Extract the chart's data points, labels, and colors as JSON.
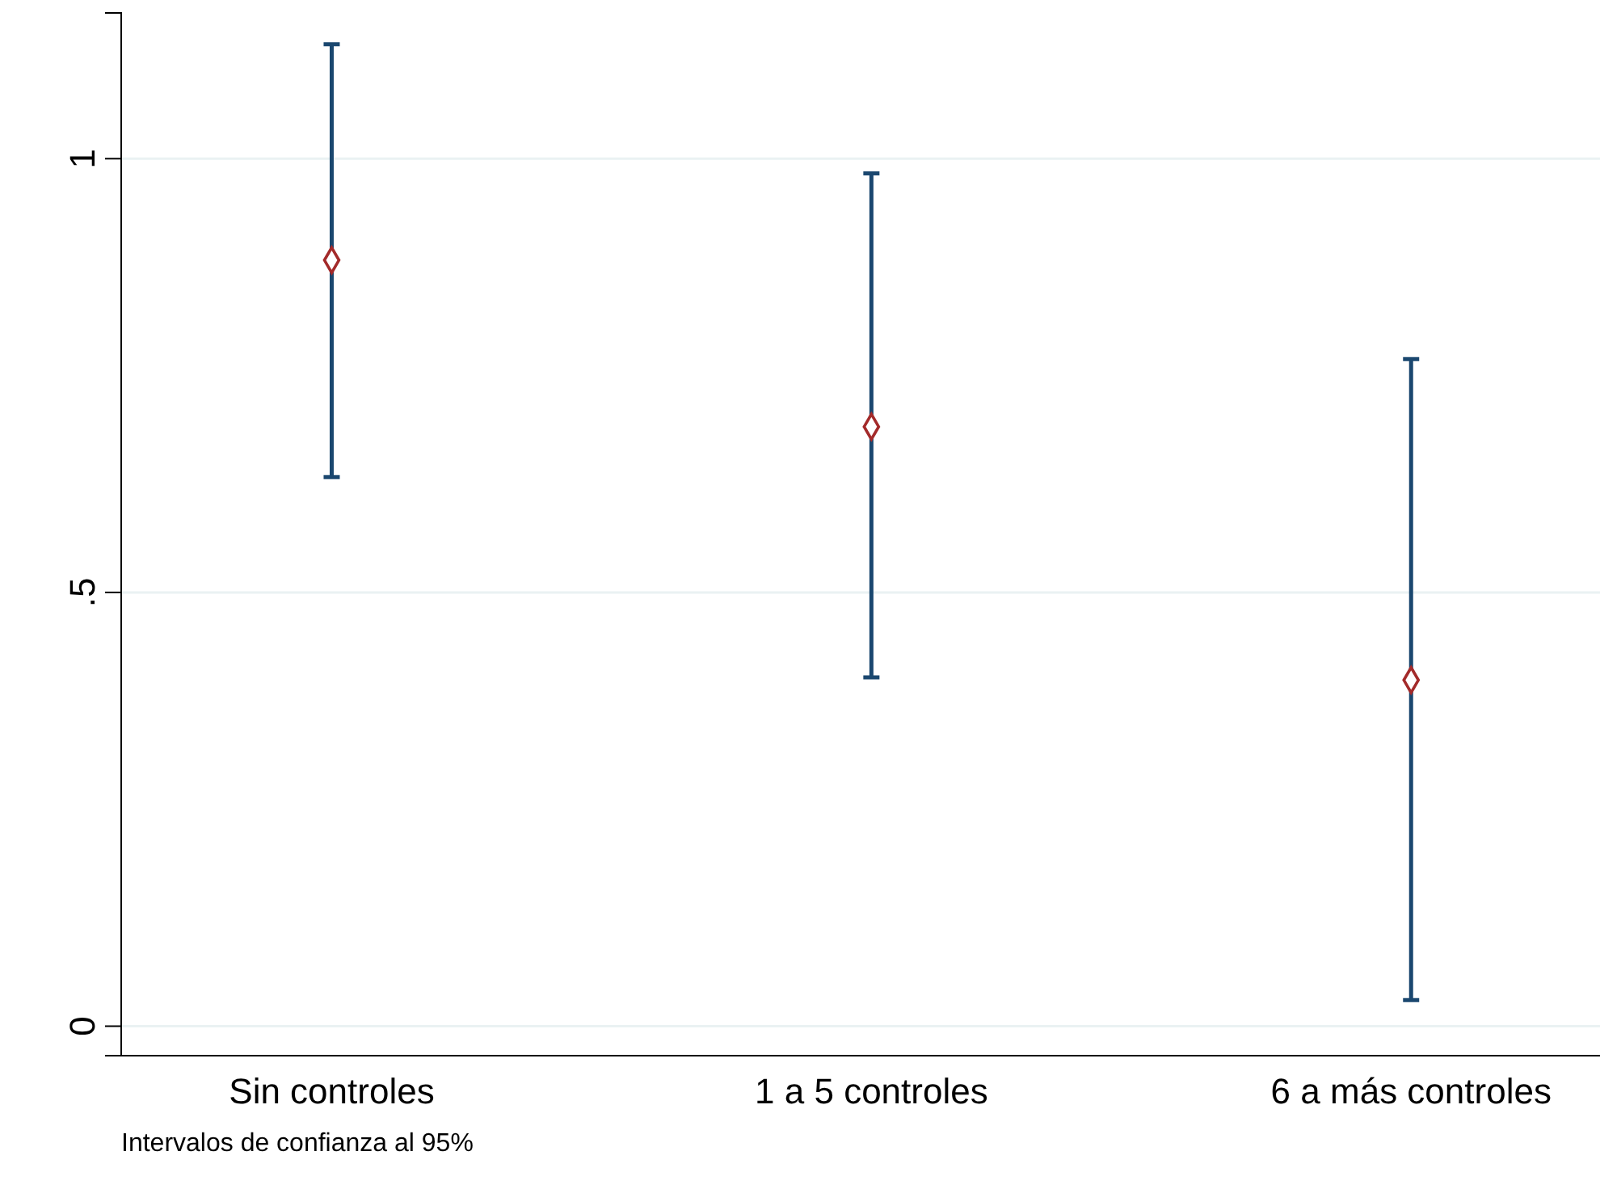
{
  "chart_data": {
    "type": "scatter",
    "categories": [
      "Sin controles",
      "1 a 5 controles",
      "6 a más controles"
    ],
    "series": [
      {
        "color": "#a32a2a",
        "values": [
          0.883,
          0.691,
          0.399
        ],
        "errors": [
          [
            0.633,
            1.132
          ],
          [
            0.402,
            0.983
          ],
          [
            0.03,
            0.769
          ]
        ]
      }
    ],
    "ylim": [
      -0.034,
      1.168
    ],
    "yticks": [
      {
        "value": 0,
        "label": "0"
      },
      {
        "value": 0.5,
        "label": ".5"
      },
      {
        "value": 1,
        "label": "1"
      }
    ],
    "grid": "y",
    "marker": "diamond",
    "annotations": [
      "Intervalos de confianza al 95%"
    ]
  }
}
